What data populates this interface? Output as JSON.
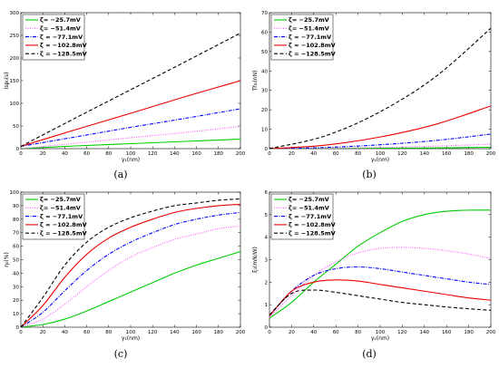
{
  "chart_data": [
    {
      "type": "line",
      "caption": "(a)",
      "xlabel": "γ₁(nm)",
      "ylabel": "Isp₀(s)",
      "xlim": [
        0,
        200
      ],
      "ylim": [
        0,
        300
      ],
      "xticks": [
        0,
        20,
        40,
        60,
        80,
        100,
        120,
        140,
        160,
        180,
        200
      ],
      "yticks": [
        0,
        50,
        100,
        150,
        200,
        250,
        300
      ],
      "legend_position": "top-left",
      "series": [
        {
          "name": "ζ= −25.7mV",
          "color": "#00cc00",
          "style": "solid",
          "x": [
            0,
            50,
            100,
            150,
            200
          ],
          "y": [
            0,
            6,
            11,
            16,
            21
          ]
        },
        {
          "name": "ζ= −51.4mV",
          "color": "#ff55ff",
          "style": "dotted",
          "x": [
            0,
            50,
            100,
            150,
            200
          ],
          "y": [
            0,
            12,
            24,
            36,
            49
          ]
        },
        {
          "name": "ζ = −77.1mV",
          "color": "#0000ff",
          "style": "dashdot",
          "x": [
            0,
            50,
            100,
            150,
            200
          ],
          "y": [
            5,
            26,
            47,
            67,
            88
          ]
        },
        {
          "name": "ζ = −102.8mV",
          "color": "#ee0000",
          "style": "solid",
          "x": [
            0,
            50,
            100,
            150,
            200
          ],
          "y": [
            5,
            42,
            78,
            115,
            150
          ]
        },
        {
          "name": "ζ = −128.5mV",
          "color": "#000000",
          "style": "dashed",
          "x": [
            0,
            50,
            100,
            150,
            200
          ],
          "y": [
            5,
            68,
            130,
            192,
            255
          ]
        }
      ]
    },
    {
      "type": "line",
      "caption": "(b)",
      "xlabel": "γ₁(nm)",
      "ylabel": "Th₀(nN)",
      "xlim": [
        0,
        200
      ],
      "ylim": [
        0,
        70
      ],
      "xticks": [
        0,
        20,
        40,
        60,
        80,
        100,
        120,
        140,
        160,
        180,
        200
      ],
      "yticks": [
        0,
        10,
        20,
        30,
        40,
        50,
        60,
        70
      ],
      "legend_position": "top-left",
      "series": [
        {
          "name": "ζ= −25.7mV",
          "color": "#00cc00",
          "style": "solid",
          "x": [
            0,
            50,
            100,
            150,
            200
          ],
          "y": [
            0,
            0.05,
            0.2,
            0.4,
            0.7
          ]
        },
        {
          "name": "ζ= −51.4mV",
          "color": "#ff55ff",
          "style": "dotted",
          "x": [
            0,
            50,
            100,
            150,
            200
          ],
          "y": [
            0,
            0.2,
            0.6,
            1.3,
            2.3
          ]
        },
        {
          "name": "ζ = −77.1mV",
          "color": "#0000ff",
          "style": "dashdot",
          "x": [
            0,
            50,
            100,
            150,
            200
          ],
          "y": [
            0,
            0.6,
            2.0,
            4.2,
            7.5
          ]
        },
        {
          "name": "ζ = −102.8mV",
          "color": "#ee0000",
          "style": "solid",
          "x": [
            0,
            50,
            100,
            150,
            200
          ],
          "y": [
            0,
            1.8,
            6.0,
            12.5,
            22
          ]
        },
        {
          "name": "ζ = −128.5mV",
          "color": "#000000",
          "style": "dashed",
          "x": [
            0,
            50,
            100,
            150,
            200
          ],
          "y": [
            0,
            6.5,
            19,
            37,
            62
          ]
        }
      ]
    },
    {
      "type": "line",
      "caption": "(c)",
      "xlabel": "γ₁(nm)",
      "ylabel": "η₀(%)",
      "xlim": [
        0,
        200
      ],
      "ylim": [
        0,
        100
      ],
      "xticks": [
        0,
        20,
        40,
        60,
        80,
        100,
        120,
        140,
        160,
        180,
        200
      ],
      "yticks": [
        0,
        10,
        20,
        30,
        40,
        50,
        60,
        70,
        80,
        90,
        100
      ],
      "legend_position": "top-left",
      "series": [
        {
          "name": "ζ= −25.7mV",
          "color": "#00cc00",
          "style": "solid",
          "x": [
            0,
            20,
            40,
            60,
            80,
            100,
            120,
            140,
            160,
            180,
            200
          ],
          "y": [
            0,
            2,
            6,
            12,
            19,
            26,
            33,
            40,
            46,
            51,
            56
          ]
        },
        {
          "name": "ζ= −51.4mV",
          "color": "#ff55ff",
          "style": "dotted",
          "x": [
            0,
            20,
            40,
            60,
            80,
            100,
            120,
            140,
            160,
            180,
            200
          ],
          "y": [
            0,
            6,
            17,
            30,
            42,
            52,
            59,
            65,
            69,
            73,
            75
          ]
        },
        {
          "name": "ζ = −77.1mV",
          "color": "#0000ff",
          "style": "dashdot",
          "x": [
            0,
            20,
            40,
            60,
            80,
            100,
            120,
            140,
            160,
            180,
            200
          ],
          "y": [
            0,
            11,
            27,
            42,
            54,
            63,
            70,
            76,
            80,
            83,
            85
          ]
        },
        {
          "name": "ζ = −102.8mV",
          "color": "#ee0000",
          "style": "solid",
          "x": [
            0,
            20,
            40,
            60,
            80,
            100,
            120,
            140,
            160,
            180,
            200
          ],
          "y": [
            0,
            16,
            37,
            54,
            66,
            74,
            80,
            85,
            88,
            90,
            91
          ]
        },
        {
          "name": "ζ = −128.5mV",
          "color": "#000000",
          "style": "dashed",
          "x": [
            0,
            20,
            40,
            60,
            80,
            100,
            120,
            140,
            160,
            180,
            200
          ],
          "y": [
            0,
            22,
            46,
            63,
            74,
            81,
            86,
            90,
            92,
            94,
            95
          ]
        }
      ]
    },
    {
      "type": "line",
      "caption": "(d)",
      "xlabel": "γ₁(nm)",
      "ylabel": "ξ₀(mN/W)",
      "xlim": [
        0,
        200
      ],
      "ylim": [
        0,
        6
      ],
      "xticks": [
        0,
        20,
        40,
        60,
        80,
        100,
        120,
        140,
        160,
        180,
        200
      ],
      "yticks": [
        0,
        1,
        2,
        3,
        4,
        5,
        6
      ],
      "legend_position": "top-left",
      "series": [
        {
          "name": "ζ= −25.7mV",
          "color": "#00cc00",
          "style": "solid",
          "x": [
            0,
            20,
            40,
            60,
            80,
            100,
            120,
            140,
            160,
            180,
            200
          ],
          "y": [
            0.4,
            1.1,
            2.0,
            2.8,
            3.6,
            4.2,
            4.7,
            5.0,
            5.15,
            5.2,
            5.2
          ]
        },
        {
          "name": "ζ= −51.4mV",
          "color": "#ff55ff",
          "style": "dotted",
          "x": [
            0,
            20,
            40,
            60,
            80,
            100,
            120,
            140,
            160,
            180,
            200
          ],
          "y": [
            0.45,
            1.4,
            2.3,
            2.9,
            3.3,
            3.5,
            3.55,
            3.5,
            3.4,
            3.25,
            3.05
          ]
        },
        {
          "name": "ζ = −77.1mV",
          "color": "#0000ff",
          "style": "dashdot",
          "x": [
            0,
            20,
            40,
            60,
            80,
            100,
            120,
            140,
            160,
            180,
            200
          ],
          "y": [
            0.5,
            1.6,
            2.3,
            2.6,
            2.68,
            2.6,
            2.45,
            2.3,
            2.15,
            2.0,
            1.9
          ]
        },
        {
          "name": "ζ = −102.8mV",
          "color": "#ee0000",
          "style": "solid",
          "x": [
            0,
            20,
            40,
            60,
            80,
            100,
            120,
            140,
            160,
            180,
            200
          ],
          "y": [
            0.5,
            1.6,
            2.0,
            2.1,
            2.05,
            1.9,
            1.75,
            1.6,
            1.45,
            1.3,
            1.2
          ]
        },
        {
          "name": "ζ = −128.5mV",
          "color": "#000000",
          "style": "dashed",
          "x": [
            0,
            20,
            40,
            60,
            80,
            100,
            120,
            140,
            160,
            180,
            200
          ],
          "y": [
            0.55,
            1.5,
            1.65,
            1.55,
            1.4,
            1.25,
            1.1,
            1.0,
            0.9,
            0.82,
            0.75
          ]
        }
      ]
    }
  ]
}
